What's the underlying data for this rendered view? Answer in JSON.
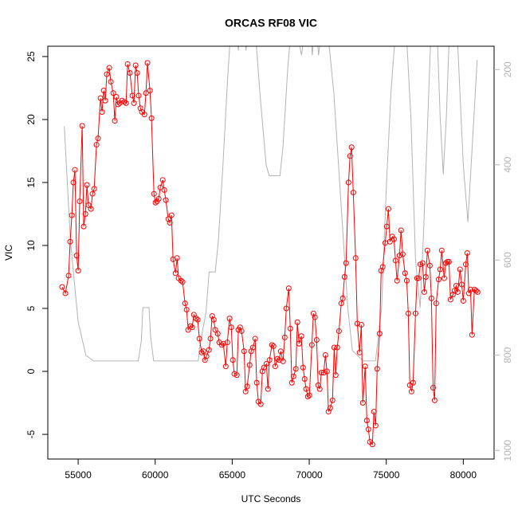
{
  "chart_data": {
    "type": "line",
    "title": "ORCAS RF08 VIC",
    "xlabel": "UTC Seconds",
    "ylabel": "VIC",
    "xlim": [
      53030,
      82000
    ],
    "xticks": [
      55000,
      60000,
      65000,
      70000,
      75000,
      80000
    ],
    "ylim": [
      -6.96,
      25.82
    ],
    "yticks": [
      -5,
      0,
      5,
      10,
      15,
      20,
      25
    ],
    "y2lim": [
      1018,
      151
    ],
    "y2ticks": [
      200,
      400,
      600,
      800,
      1000
    ],
    "series": [
      {
        "color": "#b3b3b3",
        "axis": "y2",
        "markers": false,
        "x": [
          54100,
          54500,
          55000,
          55500,
          56000,
          58900,
          59100,
          59200,
          59600,
          59700,
          59900,
          62800,
          62900,
          63300,
          63500,
          63900,
          64100,
          64400,
          64700,
          64900,
          65300,
          65400,
          65500,
          65800,
          65900,
          66000,
          66500,
          66800,
          67200,
          67400,
          68100,
          68300,
          68600,
          68800,
          69200,
          69500,
          69700,
          70100,
          70200,
          70300,
          70500,
          70600,
          70800,
          71200,
          71600,
          72100,
          72500,
          72800,
          73500,
          74300,
          74700,
          75000,
          75300,
          75600,
          76000,
          76200,
          76300,
          76600,
          76900,
          77200,
          77400,
          77700,
          77900,
          78300,
          78500,
          78700,
          78900,
          79100,
          79600,
          80000,
          80300,
          80600,
          80900
        ],
        "values": [
          319,
          560,
          730,
          800,
          812,
          812,
          770,
          700,
          700,
          760,
          812,
          812,
          780,
          710,
          625,
          625,
          560,
          400,
          220,
          120,
          120,
          160,
          120,
          120,
          160,
          120,
          120,
          250,
          400,
          423,
          423,
          360,
          200,
          120,
          120,
          170,
          120,
          120,
          170,
          120,
          120,
          170,
          120,
          120,
          250,
          500,
          700,
          790,
          812,
          812,
          700,
          450,
          250,
          120,
          120,
          130,
          120,
          300,
          600,
          700,
          560,
          300,
          120,
          120,
          300,
          420,
          300,
          120,
          120,
          400,
          520,
          350,
          180
        ]
      },
      {
        "color": "#ff0000",
        "markers": true,
        "x": [
          53960,
          54170,
          54380,
          54480,
          54590,
          54690,
          54790,
          54900,
          55000,
          55100,
          55260,
          55360,
          55470,
          55570,
          55670,
          55830,
          55930,
          56040,
          56190,
          56290,
          56450,
          56550,
          56660,
          56760,
          56860,
          57020,
          57120,
          57280,
          57380,
          57480,
          57590,
          57690,
          57850,
          58000,
          58110,
          58210,
          58360,
          58520,
          58620,
          58730,
          58830,
          58930,
          59040,
          59140,
          59300,
          59400,
          59500,
          59660,
          59760,
          59920,
          60020,
          60120,
          60230,
          60330,
          60490,
          60590,
          60690,
          60850,
          60950,
          61060,
          61160,
          61320,
          61420,
          61520,
          61680,
          61780,
          61940,
          62040,
          62140,
          62300,
          62400,
          62510,
          62660,
          62760,
          62870,
          63020,
          63130,
          63230,
          63330,
          63490,
          63590,
          63700,
          63800,
          63900,
          64060,
          64160,
          64320,
          64420,
          64580,
          64680,
          64830,
          64940,
          65040,
          65140,
          65300,
          65400,
          65510,
          65610,
          65770,
          65870,
          65970,
          66130,
          66230,
          66340,
          66490,
          66590,
          66700,
          66850,
          66960,
          67060,
          67220,
          67320,
          67420,
          67580,
          67680,
          67790,
          67940,
          68040,
          68150,
          68300,
          68410,
          68510,
          68670,
          68770,
          68870,
          68980,
          69130,
          69230,
          69340,
          69490,
          69600,
          69700,
          69800,
          69910,
          70010,
          70170,
          70270,
          70370,
          70480,
          70580,
          70680,
          70790,
          70940,
          71050,
          71150,
          71250,
          71360,
          71510,
          71620,
          71720,
          71820,
          71930,
          72080,
          72180,
          72290,
          72390,
          72550,
          72650,
          72750,
          72860,
          73010,
          73120,
          73270,
          73380,
          73480,
          73630,
          73740,
          73840,
          73940,
          74100,
          74200,
          74310,
          74410,
          74570,
          74670,
          74770,
          74930,
          75030,
          75140,
          75240,
          75390,
          75500,
          75600,
          75700,
          75860,
          75960,
          76070,
          76220,
          76330,
          76430,
          76530,
          76640,
          76740,
          76900,
          77000,
          77100,
          77210,
          77360,
          77470,
          77570,
          77670,
          77830,
          77930,
          78040,
          78140,
          78240,
          78400,
          78500,
          78600,
          78760,
          78860,
          78970,
          79070,
          79170,
          79330,
          79430,
          79540,
          79640,
          79790,
          79900,
          80000,
          80160,
          80260,
          80360,
          80470,
          80570,
          80720,
          80830,
          80930
        ],
        "values": [
          6.7,
          6.2,
          7.6,
          10.3,
          12.4,
          15,
          16,
          9.2,
          8,
          13.5,
          19.5,
          11.5,
          12.5,
          14.8,
          13.2,
          12.9,
          14.1,
          14.5,
          18,
          18.5,
          21.7,
          20.6,
          22.3,
          21.5,
          23.6,
          24.1,
          23,
          22.1,
          19.9,
          21.8,
          21.2,
          21.3,
          21.5,
          21.4,
          21.3,
          24.4,
          23.7,
          21.9,
          21.3,
          24.3,
          23.7,
          21.9,
          20.9,
          20.6,
          20.4,
          22.1,
          24.5,
          22.3,
          20.1,
          14.1,
          13.4,
          13.5,
          13.7,
          14.6,
          15.2,
          14.4,
          13.6,
          12.1,
          11.8,
          12.4,
          8.9,
          7.8,
          9,
          7.4,
          7.2,
          7.1,
          5.4,
          4.9,
          3.3,
          3.6,
          3.5,
          4.5,
          4.2,
          4.1,
          2.6,
          1.5,
          1.6,
          0.9,
          1.2,
          1.7,
          2.6,
          4.4,
          4.1,
          3.3,
          3,
          2.3,
          2.1,
          2.2,
          0.4,
          2.3,
          4.2,
          3.5,
          0.9,
          -0.2,
          -0.3,
          3.3,
          3.5,
          3.2,
          1.6,
          -1.6,
          -1.2,
          0.5,
          1.6,
          1.9,
          2.6,
          -0.9,
          -2.4,
          -2.6,
          0,
          0.3,
          0.6,
          -1.4,
          0.9,
          2.1,
          2,
          0.4,
          1,
          0.9,
          1.6,
          0.8,
          2.7,
          5,
          6.6,
          3.4,
          -0.9,
          -0.4,
          0.2,
          3.9,
          2.2,
          2.8,
          0.3,
          -0.6,
          -1.4,
          -2,
          -1.9,
          2.1,
          4.6,
          4.3,
          2.5,
          -1.1,
          -1.4,
          -0.1,
          -0.1,
          1.3,
          0,
          -3.2,
          -2.9,
          -2.3,
          1.9,
          -0.3,
          1.9,
          3.2,
          5.4,
          5.8,
          7.5,
          8.6,
          15,
          17.1,
          17.8,
          14.2,
          9,
          3.8,
          1.5,
          3.7,
          -2.5,
          0.4,
          -3.9,
          -4.6,
          -5.6,
          -5.8,
          -3.2,
          -4.3,
          0.2,
          3,
          8,
          8.3,
          10.2,
          11.5,
          12.9,
          10.3,
          10.7,
          10.5,
          8.8,
          7.2,
          9.2,
          11.2,
          9.3,
          7.8,
          7.2,
          4.6,
          -1.1,
          -1.6,
          -0.9,
          4.6,
          7.4,
          7.4,
          8.5,
          8.6,
          6.3,
          7.5,
          9.6,
          8.4,
          5.8,
          -1.3,
          -2.3,
          5.4,
          7.3,
          8.1,
          9.6,
          7.4,
          8.6,
          8.7,
          8.7,
          5.7,
          6.1,
          6.4,
          6.8,
          6.3,
          8.1,
          6.9,
          5.6,
          8.5,
          9.4,
          6.2,
          6.5,
          2.9,
          6.5,
          6.4,
          6.3
        ]
      }
    ]
  }
}
